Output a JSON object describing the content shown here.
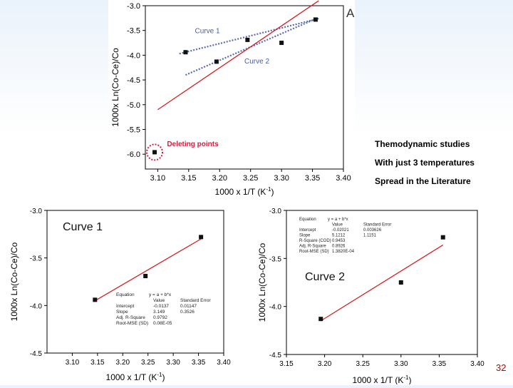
{
  "side_notes": [
    "Themodynamic studies",
    "With just 3 temperatures",
    "Spread in the Literature"
  ],
  "page_number": "32",
  "colors": {
    "fit_red": "#d42020",
    "fit_blue": "#5a6ab0",
    "curve_label": "#4a5aa8",
    "delete_red": "#cc2244"
  },
  "chart_data": [
    {
      "type": "scatter",
      "panel_letter": "A",
      "xlabel": "1000 x 1/T (K-1)",
      "ylabel": "1000x Ln(Co-Ce)/Co",
      "xlim": [
        3.08,
        3.4
      ],
      "ylim": [
        -6.3,
        -3.0
      ],
      "xticks": [
        "3.10",
        "3.15",
        "3.20",
        "3.25",
        "3.30",
        "3.35",
        "3.40"
      ],
      "yticks": [
        "-3.0",
        "-3.5",
        "-4.0",
        "-4.5",
        "-5.0",
        "-5.5",
        "-6.0"
      ],
      "points": [
        [
          3.145,
          -3.94
        ],
        [
          3.195,
          -4.13
        ],
        [
          3.245,
          -3.69
        ],
        [
          3.3,
          -3.75
        ],
        [
          3.355,
          -3.28
        ],
        [
          3.095,
          -5.96
        ]
      ],
      "series": [
        {
          "name": "Curve 1",
          "style": "dotted",
          "color": "#5a6ab0",
          "x": [
            3.135,
            3.36
          ],
          "y": [
            -3.97,
            -3.26
          ]
        },
        {
          "name": "Curve 2",
          "style": "dotted",
          "color": "#5a6ab0",
          "x": [
            3.145,
            3.36
          ],
          "y": [
            -4.4,
            -3.24
          ]
        },
        {
          "name": "",
          "style": "solid",
          "color": "#d42020",
          "x": [
            3.1,
            3.36
          ],
          "y": [
            -5.1,
            -2.9
          ]
        }
      ],
      "annotations": [
        "Curve 1",
        "Curve 2",
        "Deleting points"
      ]
    },
    {
      "type": "scatter",
      "title": "Curve 1",
      "xlabel": "1000 x 1/T (K-1)",
      "ylabel": "1000x Ln(Co-Ce)/Co",
      "xlim": [
        3.05,
        3.4
      ],
      "ylim": [
        -4.5,
        -3.0
      ],
      "xticks": [
        "3.10",
        "3.15",
        "3.20",
        "3.25",
        "3.30",
        "3.35",
        "3.40"
      ],
      "yticks": [
        "-3.0",
        "-3.5",
        "-4.0",
        "-4.5"
      ],
      "points": [
        [
          3.145,
          -3.94
        ],
        [
          3.245,
          -3.69
        ],
        [
          3.355,
          -3.28
        ]
      ],
      "fit": {
        "x": [
          3.145,
          3.355
        ],
        "y": [
          -3.95,
          -3.3
        ]
      },
      "stats_table": {
        "equation": [
          "Equation",
          "y = a + b*x"
        ],
        "header": [
          "",
          "Value",
          "Standard Error"
        ],
        "rows": [
          [
            "Intercept",
            "-0.0137",
            "0.01147"
          ],
          [
            "Slope",
            "3.149",
            "0.3526"
          ],
          [
            "Adj. R-Square",
            "0.9792",
            ""
          ],
          [
            "Root-MSE (SD)",
            "0.08E-05",
            ""
          ]
        ]
      }
    },
    {
      "type": "scatter",
      "title": "Curve 2",
      "xlabel": "1000 x 1/T (K-1)",
      "ylabel": "1000x Ln(Co-Ce)/Co",
      "xlim": [
        3.15,
        3.4
      ],
      "ylim": [
        -4.5,
        -3.0
      ],
      "xticks": [
        "3.15",
        "3.20",
        "3.25",
        "3.30",
        "3.35",
        "3.40"
      ],
      "yticks": [
        "-3.0",
        "-3.5",
        "-4.0",
        "-4.5"
      ],
      "points": [
        [
          3.195,
          -4.13
        ],
        [
          3.3,
          -3.75
        ],
        [
          3.355,
          -3.28
        ]
      ],
      "fit": {
        "x": [
          3.195,
          3.355
        ],
        "y": [
          -4.15,
          -3.36
        ]
      },
      "stats_table": {
        "equation": [
          "Equation",
          "y = a + b*x"
        ],
        "header": [
          "",
          "Value",
          "Standard Error"
        ],
        "rows": [
          [
            "Intercept",
            "-0.02021",
            "0.003626"
          ],
          [
            "Slope",
            "5.1212",
            "1.1151"
          ],
          [
            "R-Square (COD)",
            "0.9453",
            ""
          ],
          [
            "Adj. R-Square",
            "0.8926",
            ""
          ],
          [
            "Root-MSE (SD)",
            "1.3820E-04",
            ""
          ]
        ]
      }
    }
  ]
}
